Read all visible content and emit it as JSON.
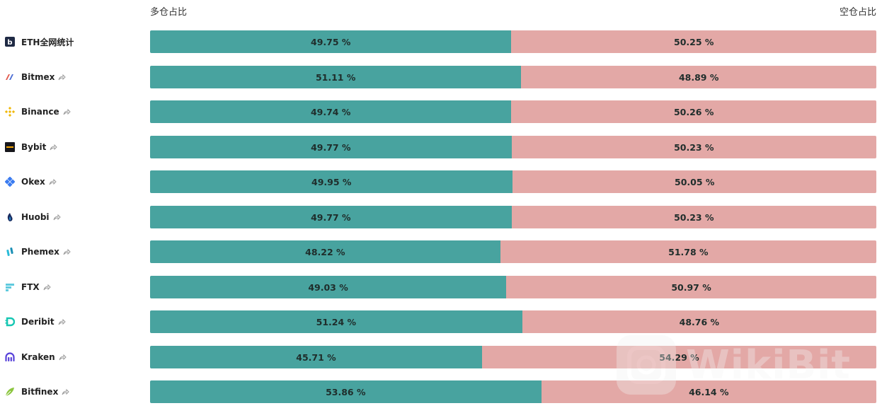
{
  "header": {
    "long_label": "多仓占比",
    "short_label": "空仓占比"
  },
  "chart_data": {
    "type": "bar",
    "stacked": true,
    "orientation": "horizontal",
    "categories": [
      "ETH全网统计",
      "Bitmex",
      "Binance",
      "Bybit",
      "Okex",
      "Huobi",
      "Phemex",
      "FTX",
      "Deribit",
      "Kraken",
      "Bitfinex"
    ],
    "series": [
      {
        "name": "多仓占比",
        "color": "#48a39f",
        "values": [
          49.75,
          51.11,
          49.74,
          49.77,
          49.95,
          49.77,
          48.22,
          49.03,
          51.24,
          45.71,
          53.86
        ]
      },
      {
        "name": "空仓占比",
        "color": "#e3a8a6",
        "values": [
          50.25,
          48.89,
          50.26,
          50.23,
          50.05,
          50.23,
          51.78,
          50.97,
          48.76,
          54.29,
          46.14
        ]
      }
    ],
    "value_labels": {
      "long": [
        "49.75 %",
        "51.11 %",
        "49.74 %",
        "49.77 %",
        "49.95 %",
        "49.77 %",
        "48.22 %",
        "49.03 %",
        "51.24 %",
        "45.71 %",
        "53.86 %"
      ],
      "short": [
        "50.25 %",
        "48.89 %",
        "50.26 %",
        "50.23 %",
        "50.05 %",
        "50.23 %",
        "51.78 %",
        "50.97 %",
        "48.76 %",
        "54.29 %",
        "46.14 %"
      ]
    },
    "xlim": [
      0,
      100
    ],
    "legend": "top"
  },
  "exchanges": [
    {
      "name": "ETH全网统计",
      "icon": "eth-stats-icon",
      "share": false
    },
    {
      "name": "Bitmex",
      "icon": "bitmex-logo-icon",
      "share": true
    },
    {
      "name": "Binance",
      "icon": "binance-logo-icon",
      "share": true
    },
    {
      "name": "Bybit",
      "icon": "bybit-logo-icon",
      "share": true
    },
    {
      "name": "Okex",
      "icon": "okex-logo-icon",
      "share": true
    },
    {
      "name": "Huobi",
      "icon": "huobi-logo-icon",
      "share": true
    },
    {
      "name": "Phemex",
      "icon": "phemex-logo-icon",
      "share": true
    },
    {
      "name": "FTX",
      "icon": "ftx-logo-icon",
      "share": true
    },
    {
      "name": "Deribit",
      "icon": "deribit-logo-icon",
      "share": true
    },
    {
      "name": "Kraken",
      "icon": "kraken-logo-icon",
      "share": true
    },
    {
      "name": "Bitfinex",
      "icon": "bitfinex-logo-icon",
      "share": true
    }
  ],
  "watermark": {
    "text": "WikiBit",
    "icon": "wikibit-logo-icon"
  },
  "colors": {
    "long": "#48a39f",
    "short": "#e3a8a6"
  }
}
